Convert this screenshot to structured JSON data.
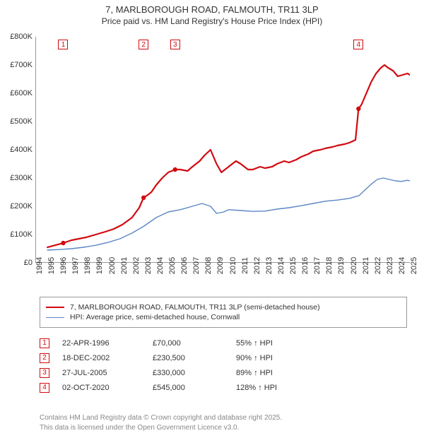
{
  "title_line1": "7, MARLBOROUGH ROAD, FALMOUTH, TR11 3LP",
  "title_line2": "Price paid vs. HM Land Registry's House Price Index (HPI)",
  "chart": {
    "type": "line",
    "background_color": "#ffffff",
    "axis_color": "#333333",
    "x": {
      "min": 1994,
      "max": 2025,
      "tick_step": 1
    },
    "y": {
      "min": 0,
      "max": 800000,
      "tick_step": 100000,
      "tick_labels": [
        "£0",
        "£100K",
        "£200K",
        "£300K",
        "£400K",
        "£500K",
        "£600K",
        "£700K",
        "£800K"
      ]
    },
    "series": {
      "price_paid": {
        "label": "7, MARLBOROUGH ROAD, FALMOUTH, TR11 3LP (semi-detached house)",
        "color": "#d10a10",
        "line_width": 2.2,
        "points": [
          [
            1995.0,
            55000
          ],
          [
            1996.31,
            70000
          ],
          [
            1997.0,
            80000
          ],
          [
            1997.6,
            85000
          ],
          [
            1998.2,
            90000
          ],
          [
            1999.0,
            100000
          ],
          [
            1999.8,
            110000
          ],
          [
            2000.5,
            120000
          ],
          [
            2001.2,
            135000
          ],
          [
            2002.0,
            160000
          ],
          [
            2002.6,
            195000
          ],
          [
            2002.96,
            230500
          ],
          [
            2003.3,
            240000
          ],
          [
            2003.6,
            250000
          ],
          [
            2004.0,
            275000
          ],
          [
            2004.5,
            300000
          ],
          [
            2005.0,
            320000
          ],
          [
            2005.57,
            330000
          ],
          [
            2006.0,
            330000
          ],
          [
            2006.6,
            325000
          ],
          [
            2007.0,
            340000
          ],
          [
            2007.6,
            360000
          ],
          [
            2008.0,
            380000
          ],
          [
            2008.5,
            400000
          ],
          [
            2009.0,
            350000
          ],
          [
            2009.4,
            320000
          ],
          [
            2010.0,
            340000
          ],
          [
            2010.6,
            360000
          ],
          [
            2011.0,
            350000
          ],
          [
            2011.6,
            330000
          ],
          [
            2012.0,
            330000
          ],
          [
            2012.6,
            340000
          ],
          [
            2013.0,
            335000
          ],
          [
            2013.6,
            340000
          ],
          [
            2014.0,
            350000
          ],
          [
            2014.6,
            360000
          ],
          [
            2015.0,
            355000
          ],
          [
            2015.6,
            365000
          ],
          [
            2016.0,
            375000
          ],
          [
            2016.6,
            385000
          ],
          [
            2017.0,
            395000
          ],
          [
            2017.6,
            400000
          ],
          [
            2018.0,
            405000
          ],
          [
            2018.6,
            410000
          ],
          [
            2019.0,
            415000
          ],
          [
            2019.6,
            420000
          ],
          [
            2020.0,
            425000
          ],
          [
            2020.5,
            435000
          ],
          [
            2020.75,
            545000
          ],
          [
            2021.0,
            560000
          ],
          [
            2021.4,
            600000
          ],
          [
            2021.8,
            640000
          ],
          [
            2022.2,
            670000
          ],
          [
            2022.6,
            690000
          ],
          [
            2022.9,
            700000
          ],
          [
            2023.2,
            690000
          ],
          [
            2023.6,
            680000
          ],
          [
            2024.0,
            660000
          ],
          [
            2024.4,
            665000
          ],
          [
            2024.8,
            670000
          ],
          [
            2025.0,
            665000
          ]
        ]
      },
      "hpi": {
        "label": "HPI: Average price, semi-detached house, Cornwall",
        "color": "#5a86c5",
        "line_width": 1.4,
        "points": [
          [
            1995.0,
            45000
          ],
          [
            1996.0,
            47000
          ],
          [
            1997.0,
            50000
          ],
          [
            1998.0,
            55000
          ],
          [
            1999.0,
            62000
          ],
          [
            2000.0,
            72000
          ],
          [
            2001.0,
            85000
          ],
          [
            2002.0,
            105000
          ],
          [
            2003.0,
            130000
          ],
          [
            2004.0,
            160000
          ],
          [
            2005.0,
            180000
          ],
          [
            2006.0,
            188000
          ],
          [
            2007.0,
            200000
          ],
          [
            2007.8,
            210000
          ],
          [
            2008.5,
            200000
          ],
          [
            2009.0,
            175000
          ],
          [
            2009.6,
            180000
          ],
          [
            2010.0,
            188000
          ],
          [
            2011.0,
            185000
          ],
          [
            2012.0,
            182000
          ],
          [
            2013.0,
            183000
          ],
          [
            2014.0,
            190000
          ],
          [
            2015.0,
            195000
          ],
          [
            2016.0,
            202000
          ],
          [
            2017.0,
            210000
          ],
          [
            2018.0,
            218000
          ],
          [
            2019.0,
            222000
          ],
          [
            2020.0,
            228000
          ],
          [
            2020.8,
            238000
          ],
          [
            2021.3,
            258000
          ],
          [
            2021.8,
            278000
          ],
          [
            2022.3,
            295000
          ],
          [
            2022.8,
            300000
          ],
          [
            2023.3,
            295000
          ],
          [
            2023.8,
            290000
          ],
          [
            2024.3,
            288000
          ],
          [
            2024.8,
            292000
          ],
          [
            2025.0,
            290000
          ]
        ]
      }
    },
    "sale_markers": {
      "border_color": "#d10a10",
      "text_color": "#d10a10",
      "items": [
        {
          "n": "1",
          "year": 1996.31
        },
        {
          "n": "2",
          "year": 2002.96
        },
        {
          "n": "3",
          "year": 2005.57
        },
        {
          "n": "4",
          "year": 2020.75
        }
      ]
    }
  },
  "legend": {
    "rows": [
      {
        "color": "#d10a10",
        "width": 2.2,
        "label_path": "chart.series.price_paid.label"
      },
      {
        "color": "#5a86c5",
        "width": 1.4,
        "label_path": "chart.series.hpi.label"
      }
    ]
  },
  "sales_table": {
    "marker_border": "#d10a10",
    "marker_text": "#d10a10",
    "rows": [
      {
        "n": "1",
        "date": "22-APR-1996",
        "price": "£70,000",
        "delta": "55% ↑ HPI"
      },
      {
        "n": "2",
        "date": "18-DEC-2002",
        "price": "£230,500",
        "delta": "90% ↑ HPI"
      },
      {
        "n": "3",
        "date": "27-JUL-2005",
        "price": "£330,000",
        "delta": "89% ↑ HPI"
      },
      {
        "n": "4",
        "date": "02-OCT-2020",
        "price": "£545,000",
        "delta": "128% ↑ HPI"
      }
    ]
  },
  "footer": {
    "line1": "Contains HM Land Registry data © Crown copyright and database right 2025.",
    "line2": "This data is licensed under the Open Government Licence v3.0."
  }
}
